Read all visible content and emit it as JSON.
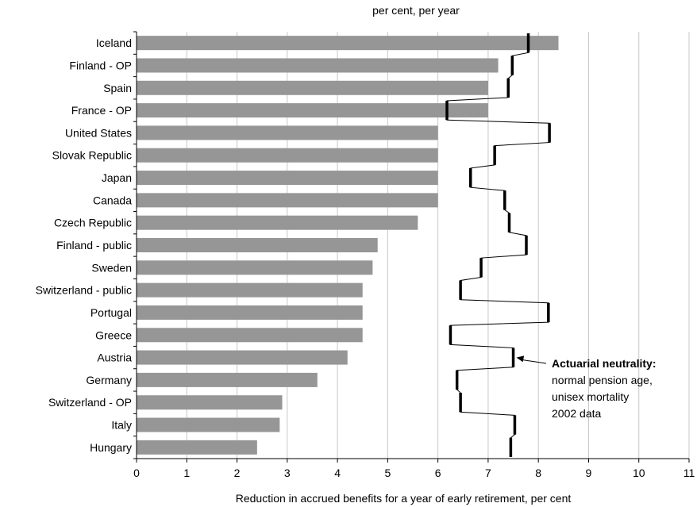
{
  "chart_data": {
    "type": "bar",
    "orientation": "horizontal",
    "title": "per cent, per year",
    "xlabel": "Reduction in accrued benefits for a year of early retirement, per cent",
    "xlim": [
      0,
      11
    ],
    "xticks": [
      0,
      1,
      2,
      3,
      4,
      5,
      6,
      7,
      8,
      9,
      10,
      11
    ],
    "grid": "vertical",
    "colors": {
      "bar": "#969696",
      "line": "#000000",
      "grid": "#c8c8c8"
    },
    "categories": [
      "Iceland",
      "Finland - OP",
      "Spain",
      "France - OP",
      "United States",
      "Slovak Republic",
      "Japan",
      "Canada",
      "Czech Republic",
      "Finland - public",
      "Sweden",
      "Switzerland - public",
      "Portugal",
      "Greece",
      "Austria",
      "Germany",
      "Switzerland - OP",
      "Italy",
      "Hungary"
    ],
    "series": [
      {
        "values": [
          8.4,
          7.2,
          7.0,
          7.0,
          6.0,
          6.0,
          6.0,
          6.0,
          5.6,
          4.8,
          4.7,
          4.5,
          4.5,
          4.5,
          4.2,
          3.6,
          2.9,
          2.85,
          2.4
        ]
      },
      {
        "name": "Actuarial neutrality",
        "type": "step",
        "values": [
          7.8,
          7.48,
          7.4,
          6.18,
          8.22,
          7.13,
          6.65,
          7.33,
          7.42,
          7.76,
          6.86,
          6.45,
          8.2,
          6.25,
          7.5,
          6.38,
          6.45,
          7.53,
          7.45
        ]
      }
    ],
    "annotation": {
      "title": "Actuarial neutrality:",
      "lines": [
        "normal pension age,",
        "unisex mortality",
        "2002 data"
      ],
      "points_to": "Austria"
    }
  }
}
